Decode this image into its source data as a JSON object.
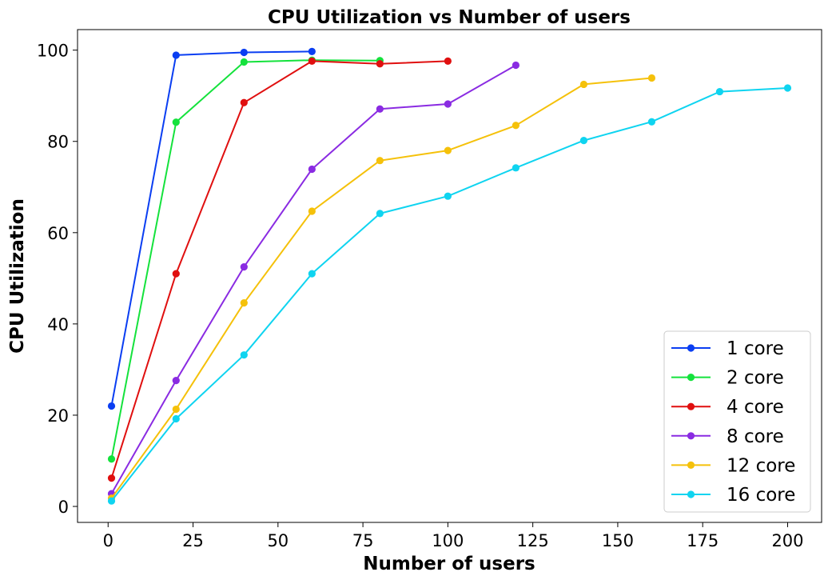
{
  "chart_data": {
    "type": "line",
    "title": "CPU Utilization vs Number of users",
    "xlabel": "Number of users",
    "ylabel": "CPU Utilization",
    "xlim": [
      -9,
      210
    ],
    "ylim": [
      -3.5,
      104.5
    ],
    "xticks": [
      0,
      25,
      50,
      75,
      100,
      125,
      150,
      175,
      200
    ],
    "yticks": [
      0,
      20,
      40,
      60,
      80,
      100
    ],
    "grid": false,
    "legend_position": "lower-right",
    "markers": true,
    "series": [
      {
        "name": "1 core",
        "color": "#0a3ef2",
        "x": [
          1,
          20,
          40,
          60
        ],
        "y": [
          22.0,
          98.9,
          99.5,
          99.7
        ]
      },
      {
        "name": "2 core",
        "color": "#14e23c",
        "x": [
          1,
          20,
          40,
          60,
          80
        ],
        "y": [
          10.4,
          84.2,
          97.4,
          97.8,
          97.7
        ]
      },
      {
        "name": "4 core",
        "color": "#e00f0f",
        "x": [
          1,
          20,
          40,
          60,
          80,
          100
        ],
        "y": [
          6.2,
          51.0,
          88.5,
          97.6,
          97.0,
          97.6
        ]
      },
      {
        "name": "8 core",
        "color": "#8a2be2",
        "x": [
          1,
          20,
          40,
          60,
          80,
          100,
          120
        ],
        "y": [
          2.8,
          27.6,
          52.5,
          73.9,
          87.1,
          88.2,
          96.7
        ]
      },
      {
        "name": "12 core",
        "color": "#f5c10a",
        "x": [
          1,
          20,
          40,
          60,
          80,
          100,
          120,
          140,
          160
        ],
        "y": [
          1.8,
          21.3,
          44.6,
          64.7,
          75.8,
          78.0,
          83.5,
          92.5,
          93.9
        ]
      },
      {
        "name": "16 core",
        "color": "#0fd4f0",
        "x": [
          1,
          20,
          40,
          60,
          80,
          100,
          120,
          140,
          160,
          180,
          200
        ],
        "y": [
          1.2,
          19.2,
          33.2,
          51.0,
          64.2,
          68.0,
          74.2,
          80.2,
          84.3,
          90.9,
          91.7
        ]
      }
    ]
  }
}
